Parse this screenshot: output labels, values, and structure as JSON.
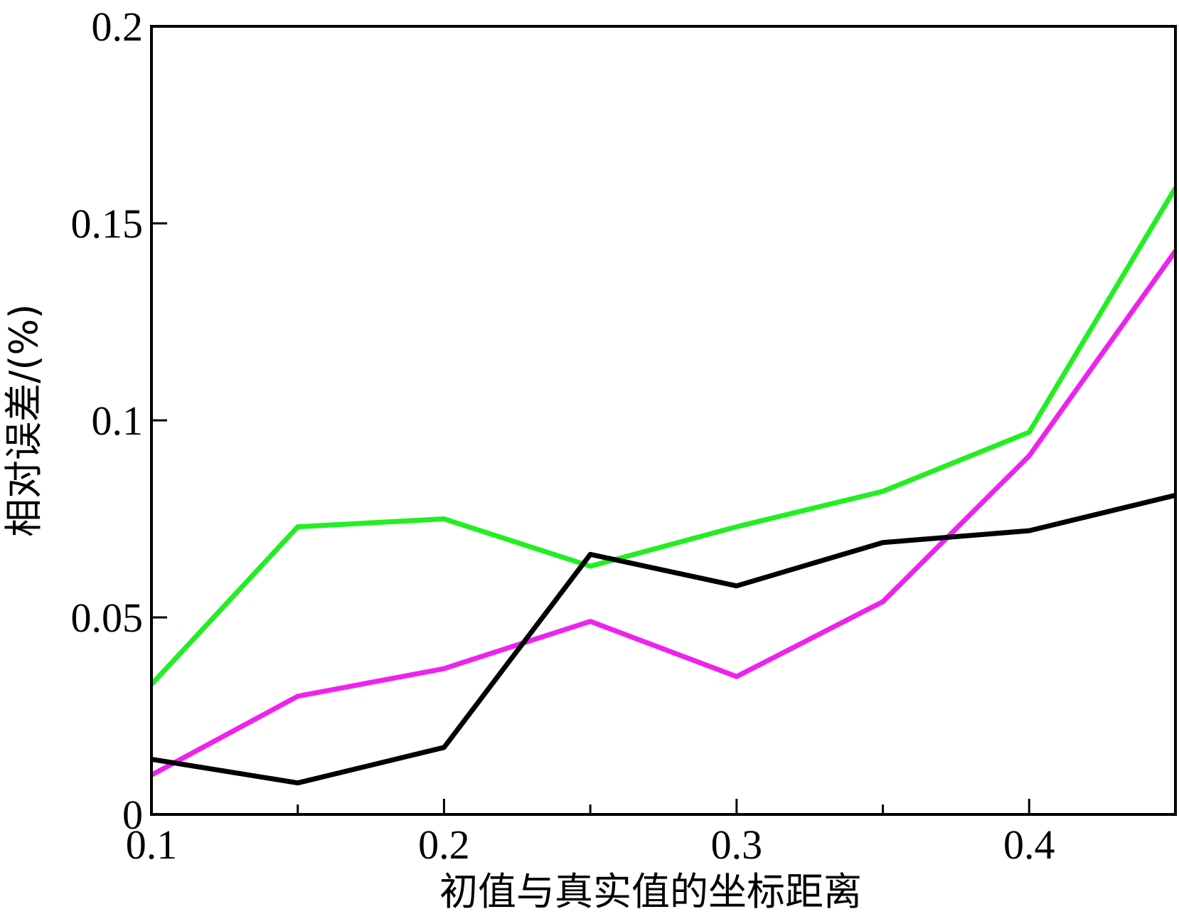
{
  "chart_data": {
    "type": "line",
    "title": "",
    "xlabel": "初值与真实值的坐标距离",
    "ylabel": "相对误差/(%)",
    "xlim": [
      0.1,
      0.45
    ],
    "ylim": [
      0,
      0.2
    ],
    "x_ticks": [
      0.1,
      0.2,
      0.3,
      0.4
    ],
    "x_tick_labels": [
      "0.1",
      "0.2",
      "0.3",
      "0.4"
    ],
    "y_ticks": [
      0,
      0.05,
      0.1,
      0.15,
      0.2
    ],
    "y_tick_labels": [
      "0",
      "0.05",
      "0.1",
      "0.15",
      "0.2"
    ],
    "grid": false,
    "legend": "none",
    "x": [
      0.1,
      0.15,
      0.2,
      0.25,
      0.3,
      0.35,
      0.4,
      0.45
    ],
    "series": [
      {
        "color": "#22ee22",
        "values": [
          0.033,
          0.073,
          0.075,
          0.063,
          0.073,
          0.082,
          0.097,
          0.159
        ]
      },
      {
        "color": "#ee22ee",
        "values": [
          0.01,
          0.03,
          0.037,
          0.049,
          0.035,
          0.054,
          0.091,
          0.143
        ]
      },
      {
        "color": "#000000",
        "values": [
          0.014,
          0.008,
          0.017,
          0.066,
          0.058,
          0.069,
          0.072,
          0.081
        ]
      }
    ]
  }
}
